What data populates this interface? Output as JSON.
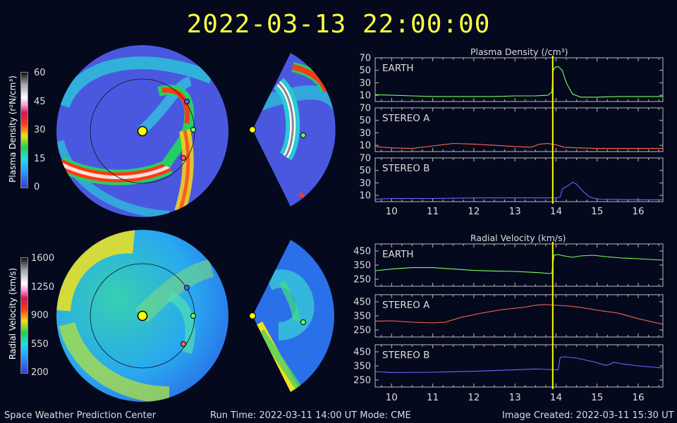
{
  "header": {
    "timestamp": "2022-03-13  22:00:00"
  },
  "colorbars": {
    "density": {
      "label": "Plasma Density (r²N/cm³)",
      "ticks": [
        "60",
        "45",
        "30",
        "15",
        "0"
      ]
    },
    "velocity": {
      "label": "Radial Velocity (km/s)",
      "ticks": [
        "1600",
        "1250",
        "900",
        "550",
        "200"
      ]
    }
  },
  "footer": {
    "left": "Space Weather Prediction Center",
    "center": "Run Time: 2022-03-11 14:00 UT   Mode: CME",
    "right": "Image Created: 2022-03-11 15:30 UT"
  },
  "colors": {
    "earth": "#7cff5a",
    "stereo_a": "#ff6a4a",
    "stereo_b": "#5f6bff",
    "marker": "#ffff00",
    "background": "#05091e"
  },
  "chart_data": [
    {
      "type": "line",
      "title": "Plasma Density (/cm³)",
      "panels": [
        {
          "name": "EARTH",
          "ylim": [
            0,
            70
          ],
          "yticks": [
            10,
            30,
            50,
            70
          ],
          "x": [
            9.6,
            10.0,
            10.5,
            11.0,
            11.5,
            12.0,
            12.5,
            13.0,
            13.5,
            13.8,
            13.9,
            13.93,
            13.98,
            14.05,
            14.15,
            14.25,
            14.4,
            14.6,
            15.0,
            15.5,
            16.0,
            16.6
          ],
          "y": [
            11,
            10,
            9,
            8,
            8,
            8,
            8,
            9,
            9,
            10,
            15,
            50,
            55,
            56,
            50,
            30,
            12,
            7,
            7,
            8,
            8,
            8
          ]
        },
        {
          "name": "STEREO A",
          "ylim": [
            0,
            70
          ],
          "yticks": [
            10,
            30,
            50,
            70
          ],
          "x": [
            9.6,
            10.0,
            10.5,
            11.0,
            11.5,
            12.0,
            12.5,
            13.0,
            13.4,
            13.6,
            13.8,
            14.0,
            14.2,
            14.5,
            15.0,
            15.5,
            16.0,
            16.6
          ],
          "y": [
            8,
            6,
            5,
            9,
            13,
            12,
            10,
            8,
            7,
            12,
            13,
            11,
            7,
            6,
            5,
            5,
            5,
            5
          ]
        },
        {
          "name": "STEREO B",
          "ylim": [
            0,
            70
          ],
          "yticks": [
            10,
            30,
            50,
            70
          ],
          "x": [
            9.6,
            10.0,
            11.0,
            12.0,
            13.0,
            13.8,
            14.0,
            14.1,
            14.15,
            14.2,
            14.3,
            14.4,
            14.5,
            14.6,
            14.8,
            15.0,
            16.0,
            16.6
          ],
          "y": [
            4,
            5,
            5,
            6,
            6,
            6,
            6,
            7,
            20,
            22,
            26,
            31,
            28,
            20,
            8,
            4,
            3,
            3
          ]
        }
      ],
      "xlim": [
        9.6,
        16.6
      ],
      "xticks": [
        10,
        11,
        12,
        13,
        14,
        15,
        16
      ],
      "marker_x": 13.92
    },
    {
      "type": "line",
      "title": "Radial Velocity (km/s)",
      "panels": [
        {
          "name": "EARTH",
          "ylim": [
            200,
            500
          ],
          "yticks": [
            250,
            350,
            450
          ],
          "x": [
            9.6,
            10.0,
            10.5,
            11.0,
            11.5,
            12.0,
            12.5,
            13.0,
            13.5,
            13.85,
            13.9,
            13.95,
            14.05,
            14.2,
            14.4,
            14.6,
            14.9,
            15.2,
            15.6,
            16.0,
            16.6
          ],
          "y": [
            310,
            322,
            332,
            332,
            322,
            312,
            308,
            305,
            298,
            290,
            293,
            420,
            425,
            415,
            405,
            415,
            420,
            410,
            400,
            395,
            385
          ]
        },
        {
          "name": "STEREO A",
          "ylim": [
            200,
            500
          ],
          "yticks": [
            250,
            350,
            450
          ],
          "x": [
            9.6,
            10.0,
            10.5,
            11.0,
            11.3,
            11.7,
            12.2,
            12.7,
            13.2,
            13.5,
            13.7,
            14.0,
            14.3,
            14.6,
            15.0,
            15.5,
            16.0,
            16.6
          ],
          "y": [
            312,
            315,
            305,
            300,
            305,
            340,
            370,
            395,
            410,
            425,
            430,
            425,
            420,
            410,
            390,
            370,
            330,
            290
          ]
        },
        {
          "name": "STEREO B",
          "ylim": [
            200,
            500
          ],
          "yticks": [
            250,
            350,
            450
          ],
          "x": [
            9.6,
            10.0,
            11.0,
            12.0,
            13.0,
            13.5,
            13.8,
            14.05,
            14.1,
            14.2,
            14.5,
            14.9,
            15.2,
            15.3,
            15.4,
            15.6,
            16.0,
            16.6
          ],
          "y": [
            310,
            303,
            305,
            312,
            322,
            328,
            325,
            322,
            410,
            415,
            405,
            380,
            355,
            360,
            375,
            365,
            350,
            335
          ]
        }
      ],
      "xlim": [
        9.6,
        16.6
      ],
      "xticks": [
        10,
        11,
        12,
        13,
        14,
        15,
        16
      ],
      "marker_x": 13.92
    }
  ]
}
